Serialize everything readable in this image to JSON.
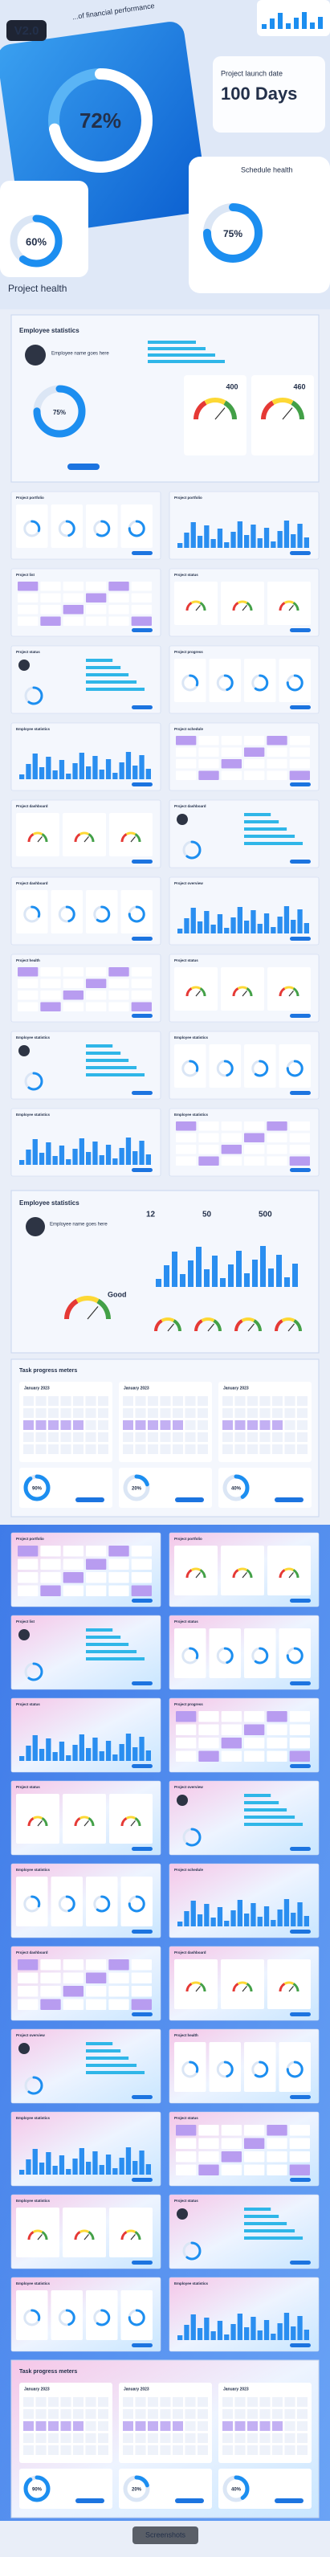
{
  "badge": "V2.0",
  "hero": {
    "caption_top": "...of financial performance",
    "gauge_main": "72%",
    "launch_label": "Project launch date",
    "launch_value": "100 Days",
    "gauge_left": "60%",
    "schedule": "Schedule health",
    "gauge_right": "75%",
    "health": "Project health"
  },
  "feature_slides": [
    {
      "title": "Employee statistics",
      "subtitle": "Employee name goes here",
      "gauge": "75%",
      "values": [
        "400",
        "460"
      ]
    },
    {
      "title": "Employee statistics",
      "subtitle": "Employee name goes here",
      "values": [
        "12",
        "50",
        "500"
      ],
      "status": "Good"
    },
    {
      "title": "Task progress meters",
      "month": "January 2023",
      "gauges": [
        "90%",
        "20%",
        "40%"
      ]
    }
  ],
  "light_slides": [
    "Project portfolio",
    "Project portfolio",
    "Project list",
    "Project status",
    "Project status",
    "Project progress",
    "Employee statistics",
    "Project schedule",
    "Project dashboard",
    "Project dashboard",
    "Project dashboard",
    "Project overview",
    "Project health",
    "Project status",
    "Employee statistics",
    "Employee statistics",
    "Employee statistics",
    "Employee statistics"
  ],
  "blue_slides": [
    "Project portfolio",
    "Project portfolio",
    "Project list",
    "Project status",
    "Project status",
    "Project progress",
    "Project status",
    "Project overview",
    "Employee statistics",
    "Project schedule",
    "Project dashboard",
    "Project dashboard",
    "Project overview",
    "Project health",
    "Employee statistics",
    "Project status",
    "Employee statistics",
    "Project status",
    "Employee statistics",
    "Employee statistics"
  ],
  "blue_feature": {
    "title": "Task progress meters",
    "month": "January 2023",
    "gauges": [
      "90%",
      "20%",
      "40%"
    ]
  },
  "button": "Screenshots"
}
